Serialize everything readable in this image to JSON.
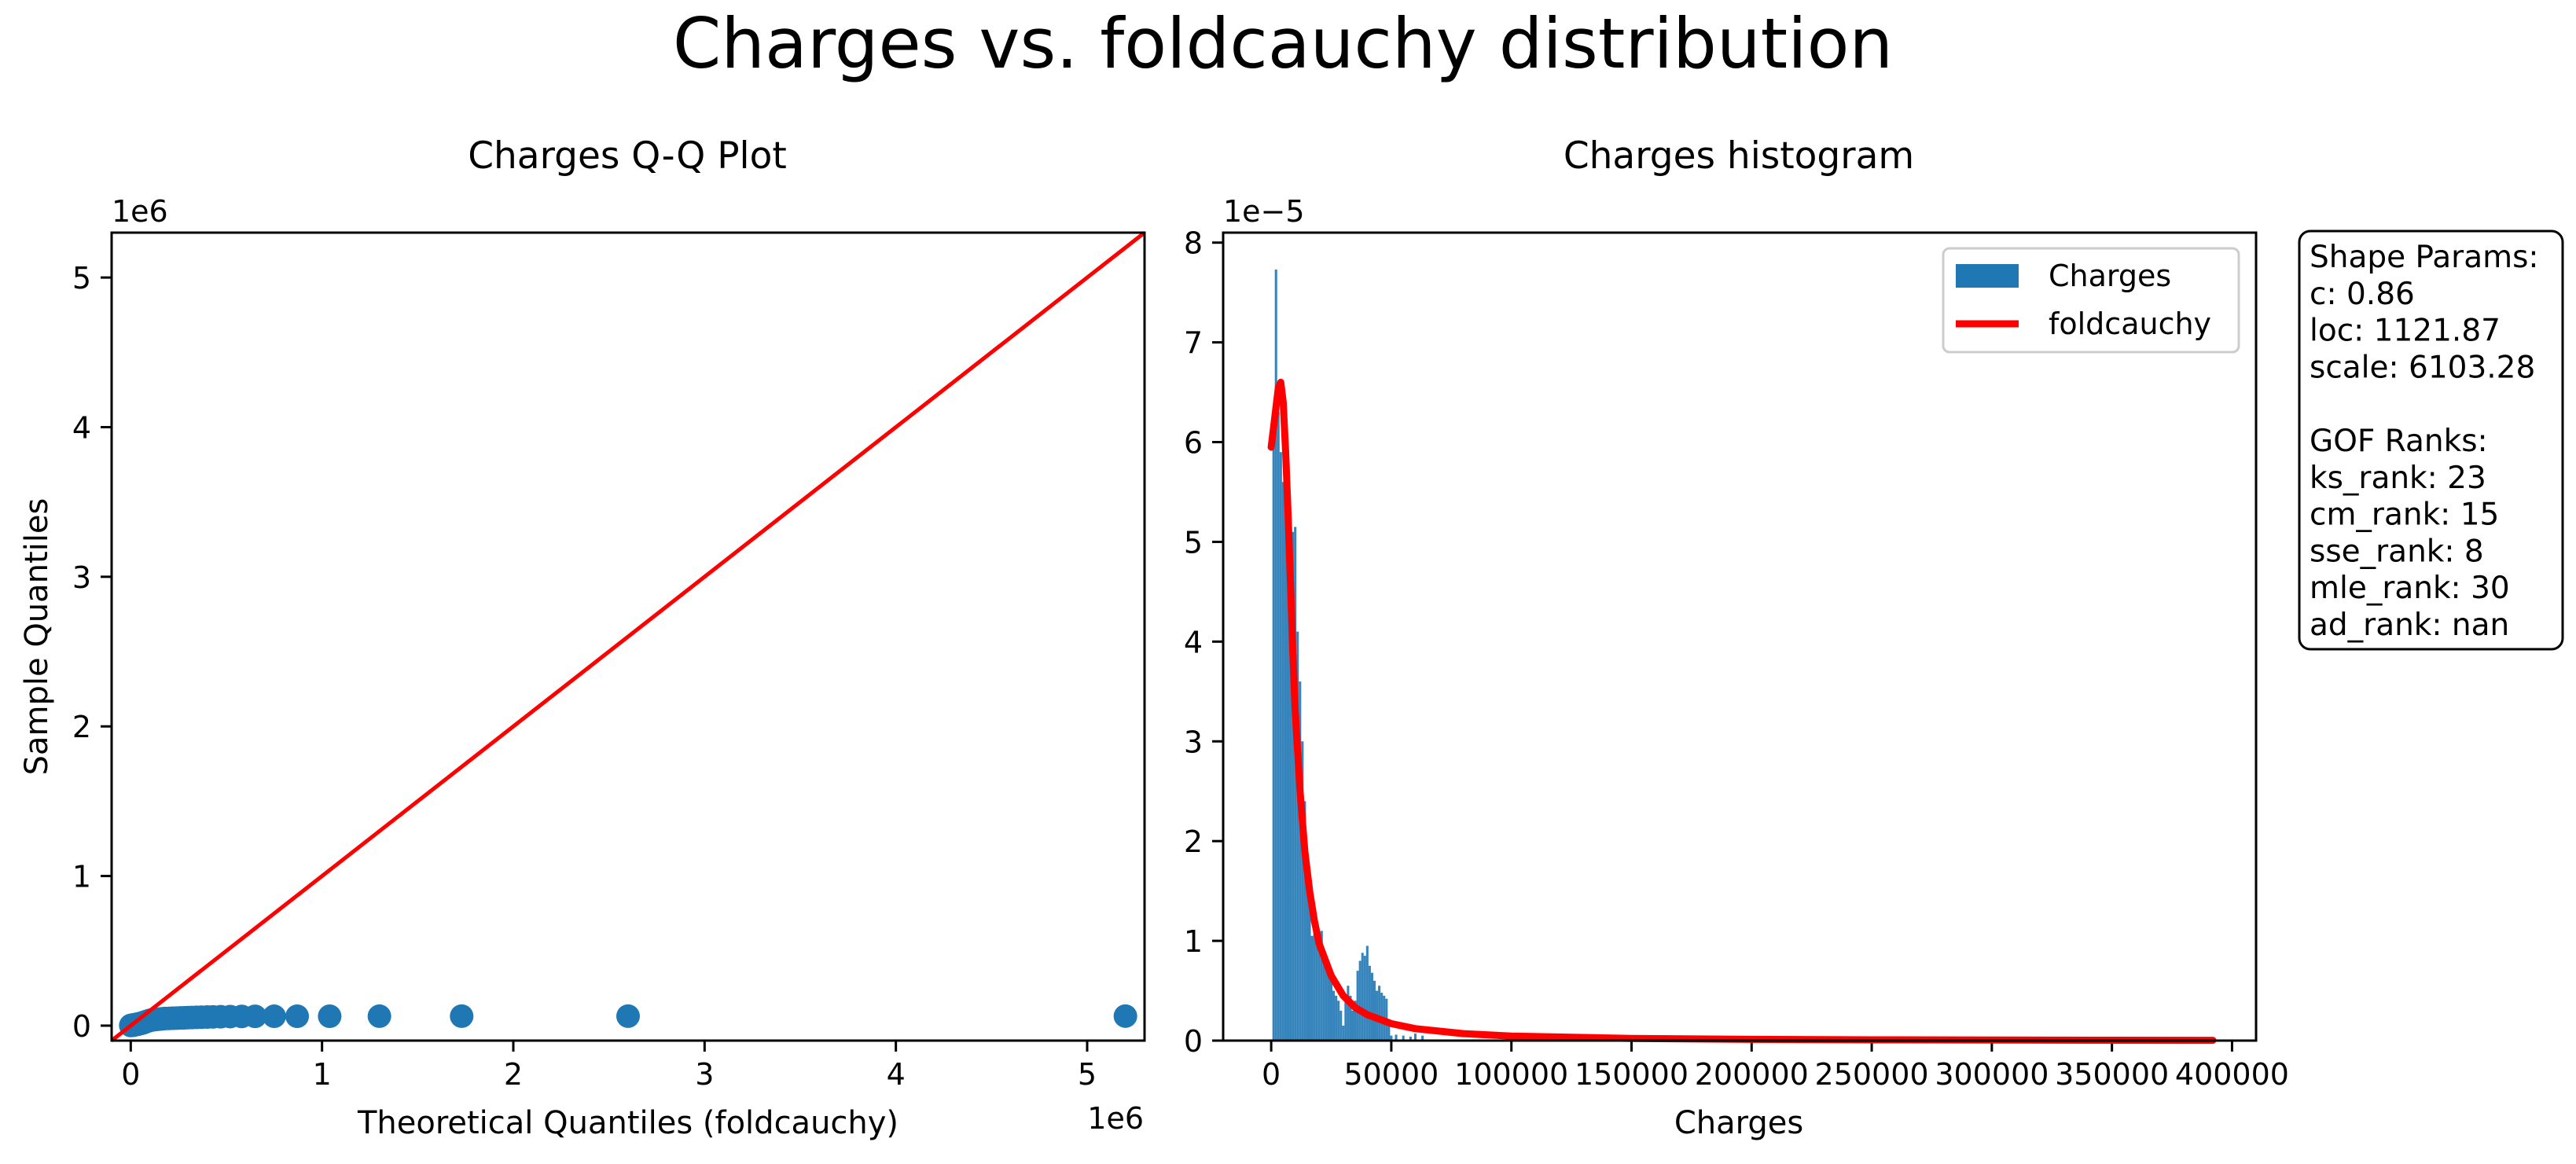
{
  "figure": {
    "suptitle": "Charges vs. foldcauchy distribution"
  },
  "qq": {
    "title": "Charges Q-Q Plot",
    "xlabel": "Theoretical Quantiles (foldcauchy)",
    "ylabel": "Sample Quantiles",
    "x_offset_label": "1e6",
    "y_offset_label": "1e6",
    "xticks": [
      0,
      1,
      2,
      3,
      4,
      5
    ],
    "yticks": [
      0,
      1,
      2,
      3,
      4,
      5
    ],
    "point_color": "#1f77b4",
    "line_color": "#ff0000"
  },
  "hist": {
    "title": "Charges histogram",
    "xlabel": "Charges",
    "y_offset_label": "1e−5",
    "xticks": [
      "0",
      "50000",
      "100000",
      "150000",
      "200000",
      "250000",
      "300000",
      "350000",
      "400000"
    ],
    "yticks": [
      "0",
      "1",
      "2",
      "3",
      "4",
      "5",
      "6",
      "7",
      "8"
    ],
    "bar_color": "#1f77b4",
    "curve_color": "#ff0000",
    "legend": [
      "Charges",
      "foldcauchy"
    ]
  },
  "stats_box": {
    "lines": [
      "Shape Params:",
      "c: 0.86",
      "loc: 1121.87",
      "scale: 6103.28",
      "",
      "GOF Ranks:",
      "ks_rank: 23",
      "cm_rank: 15",
      "sse_rank: 8",
      "mle_rank: 30",
      "ad_rank: nan"
    ]
  },
  "chart_data": [
    {
      "type": "scatter",
      "title": "Charges Q-Q Plot",
      "xlabel": "Theoretical Quantiles (foldcauchy)",
      "ylabel": "Sample Quantiles",
      "xlim": [
        -100000,
        5300000
      ],
      "ylim": [
        -100000,
        5300000
      ],
      "scale_note": "1e6",
      "points": [
        [
          0,
          1200
        ],
        [
          3000,
          1800
        ],
        [
          6000,
          2300
        ],
        [
          9000,
          2900
        ],
        [
          12000,
          3500
        ],
        [
          15000,
          4200
        ],
        [
          18000,
          5000
        ],
        [
          22000,
          6000
        ],
        [
          26000,
          7200
        ],
        [
          30000,
          8500
        ],
        [
          35000,
          9700
        ],
        [
          40000,
          11000
        ],
        [
          45000,
          12500
        ],
        [
          50000,
          14000
        ],
        [
          55000,
          15500
        ],
        [
          60000,
          17500
        ],
        [
          66000,
          20000
        ],
        [
          72000,
          23000
        ],
        [
          80000,
          27000
        ],
        [
          90000,
          31000
        ],
        [
          100000,
          35000
        ],
        [
          110000,
          38000
        ],
        [
          120000,
          40000
        ],
        [
          135000,
          42000
        ],
        [
          150000,
          44000
        ],
        [
          165000,
          46000
        ],
        [
          180000,
          47500
        ],
        [
          200000,
          48500
        ],
        [
          220000,
          49500
        ],
        [
          240000,
          50500
        ],
        [
          260000,
          51500
        ],
        [
          280000,
          52500
        ],
        [
          300000,
          53500
        ],
        [
          320000,
          54500
        ],
        [
          345000,
          55500
        ],
        [
          370000,
          56500
        ],
        [
          400000,
          57500
        ],
        [
          430000,
          58500
        ],
        [
          470000,
          59500
        ],
        [
          520000,
          60500
        ],
        [
          580000,
          61500
        ],
        [
          650000,
          62200
        ],
        [
          750000,
          62600
        ],
        [
          870000,
          62800
        ],
        [
          1040000,
          63000
        ],
        [
          1300000,
          63200
        ],
        [
          1730000,
          63500
        ],
        [
          2600000,
          63700
        ],
        [
          5200000,
          63770
        ]
      ],
      "reference_line": [
        [
          -100000,
          -100000
        ],
        [
          5300000,
          5300000
        ]
      ]
    },
    {
      "type": "bar",
      "title": "Charges histogram",
      "xlabel": "Charges",
      "xlim": [
        -20000,
        410000
      ],
      "ylim": [
        0,
        8.1e-05
      ],
      "scale_note": "1e-5",
      "bin_width": 1000,
      "bars": [
        [
          1000,
          6e-05
        ],
        [
          2000,
          7.73e-05
        ],
        [
          3000,
          6.3e-05
        ],
        [
          4000,
          5.9e-05
        ],
        [
          5000,
          5.6e-05
        ],
        [
          6000,
          5.5e-05
        ],
        [
          7000,
          5.3e-05
        ],
        [
          8000,
          5.15e-05
        ],
        [
          9000,
          5.1e-05
        ],
        [
          10000,
          5.15e-05
        ],
        [
          11000,
          4.1e-05
        ],
        [
          12000,
          3.6e-05
        ],
        [
          13000,
          3e-05
        ],
        [
          14000,
          2.4e-05
        ],
        [
          15000,
          1.8e-05
        ],
        [
          16000,
          1.35e-05
        ],
        [
          17000,
          1.05e-05
        ],
        [
          18000,
          1.3e-05
        ],
        [
          19000,
          1e-05
        ],
        [
          20000,
          9.5e-06
        ],
        [
          21000,
          1.1e-05
        ],
        [
          22000,
          8.5e-06
        ],
        [
          23000,
          7.5e-06
        ],
        [
          24000,
          7e-06
        ],
        [
          25000,
          6e-06
        ],
        [
          26000,
          5e-06
        ],
        [
          27000,
          4.5e-06
        ],
        [
          28000,
          4e-06
        ],
        [
          29000,
          3e-06
        ],
        [
          30000,
          1.5e-06
        ],
        [
          31000,
          4.5e-06
        ],
        [
          32000,
          5.5e-06
        ],
        [
          33000,
          4.5e-06
        ],
        [
          34000,
          3e-06
        ],
        [
          35000,
          4e-06
        ],
        [
          36000,
          7e-06
        ],
        [
          37000,
          8e-06
        ],
        [
          38000,
          8.8e-06
        ],
        [
          39000,
          8.5e-06
        ],
        [
          40000,
          9.5e-06
        ],
        [
          41000,
          7.5e-06
        ],
        [
          42000,
          6.8e-06
        ],
        [
          43000,
          6e-06
        ],
        [
          44000,
          5e-06
        ],
        [
          45000,
          5.5e-06
        ],
        [
          46000,
          4.8e-06
        ],
        [
          47000,
          4.5e-06
        ],
        [
          48000,
          4.2e-06
        ],
        [
          49000,
          1.8e-06
        ],
        [
          50000,
          5e-07
        ],
        [
          52000,
          6e-07
        ],
        [
          55000,
          5e-07
        ],
        [
          58000,
          4e-07
        ],
        [
          60000,
          7e-07
        ],
        [
          63000,
          5e-07
        ]
      ],
      "curve": [
        [
          0,
          5.95e-05
        ],
        [
          1000,
          6.15e-05
        ],
        [
          2000,
          6.35e-05
        ],
        [
          3000,
          6.55e-05
        ],
        [
          4000,
          6.6e-05
        ],
        [
          5000,
          6.4e-05
        ],
        [
          6000,
          5.9e-05
        ],
        [
          7000,
          5.3e-05
        ],
        [
          8000,
          4.6e-05
        ],
        [
          9000,
          3.9e-05
        ],
        [
          10000,
          3.3e-05
        ],
        [
          12000,
          2.5e-05
        ],
        [
          14000,
          1.9e-05
        ],
        [
          16000,
          1.5e-05
        ],
        [
          18000,
          1.2e-05
        ],
        [
          20000,
          9.7e-06
        ],
        [
          25000,
          6.5e-06
        ],
        [
          30000,
          4.5e-06
        ],
        [
          35000,
          3.3e-06
        ],
        [
          40000,
          2.6e-06
        ],
        [
          50000,
          1.7e-06
        ],
        [
          60000,
          1.2e-06
        ],
        [
          80000,
          7e-07
        ],
        [
          100000,
          4.5e-07
        ],
        [
          150000,
          2.2e-07
        ],
        [
          200000,
          1.3e-07
        ],
        [
          250000,
          8e-08
        ],
        [
          300000,
          6e-08
        ],
        [
          350000,
          4e-08
        ],
        [
          392000,
          3e-08
        ]
      ],
      "legend": [
        "Charges",
        "foldcauchy"
      ],
      "legend_position": "upper right"
    }
  ]
}
